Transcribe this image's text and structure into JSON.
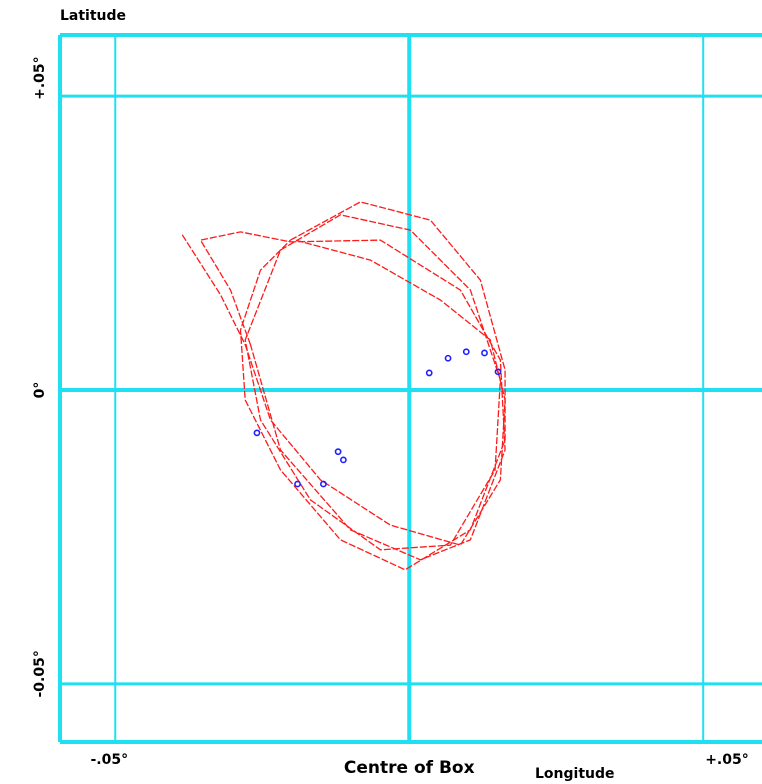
{
  "chart_data": {
    "type": "line",
    "x_label": "Longitude",
    "y_label": "Latitude",
    "xlim": [
      -0.0594,
      0.06
    ],
    "ylim": [
      -0.0599,
      0.0604
    ],
    "xticks": [
      {
        "value": -0.05,
        "label": "-.05°"
      },
      {
        "value": 0,
        "label": "Centre of Box"
      },
      {
        "value": 0.05,
        "label": "+.05°"
      }
    ],
    "yticks": [
      {
        "value": -0.05,
        "label": "-0.05°"
      },
      {
        "value": 0,
        "label": "0°"
      },
      {
        "value": 0.05,
        "label": "+.05°"
      }
    ],
    "grid": true,
    "grid_color": "#1fe0f2",
    "series": [
      {
        "color": "#ff1a1a",
        "x": [
          -0.0202,
          -0.0083,
          0.0036,
          0.0121,
          0.0163,
          0.0163,
          0.0104,
          -0.0007,
          -0.0117,
          -0.0219,
          -0.0279,
          -0.0287,
          -0.0253,
          -0.0202
        ],
        "values": [
          0.0255,
          0.032,
          0.0289,
          0.0187,
          0.0034,
          -0.0085,
          -0.0238,
          -0.0306,
          -0.0255,
          -0.0136,
          -0.0017,
          0.0102,
          0.0204,
          0.0255
        ]
      },
      {
        "color": "#ff1a1a",
        "x": [
          -0.0386,
          -0.0321,
          -0.0279,
          -0.0236,
          -0.0151,
          -0.0032,
          0.0087,
          0.0155,
          0.0163,
          0.0138,
          0.0053,
          -0.0066,
          -0.0194
        ],
        "values": [
          0.0264,
          0.0162,
          0.0077,
          -0.0051,
          -0.0153,
          -0.023,
          -0.0264,
          -0.0153,
          -0.0017,
          0.0085,
          0.0153,
          0.0221,
          0.0255
        ]
      },
      {
        "color": "#ff1a1a",
        "x": [
          -0.027,
          -0.0304,
          -0.0355,
          -0.0287,
          -0.0202,
          -0.0049,
          0.0087,
          0.0155,
          0.0163,
          0.0104,
          0.0019,
          -0.01,
          -0.0219,
          -0.027
        ],
        "values": [
          0.0077,
          0.017,
          0.0255,
          0.0269,
          0.0252,
          0.0255,
          0.017,
          0.0051,
          -0.0102,
          -0.0255,
          -0.0289,
          -0.0238,
          -0.0102,
          0.0077
        ]
      },
      {
        "color": "#ff1a1a",
        "x": [
          -0.0219,
          -0.0117,
          0.0002,
          0.0104,
          0.0155,
          0.0146,
          0.007,
          -0.0049,
          -0.0168,
          -0.0253,
          -0.0279,
          -0.0219
        ],
        "values": [
          0.0238,
          0.0298,
          0.0272,
          0.017,
          0.0017,
          -0.0136,
          -0.0264,
          -0.0272,
          -0.0187,
          -0.0051,
          0.0085,
          0.0238
        ]
      }
    ],
    "points": {
      "color": "#2020ff",
      "x": [
        -0.0259,
        -0.019,
        -0.0146,
        -0.0121,
        -0.0112,
        0.0034,
        0.0066,
        0.0097,
        0.0128,
        0.0151
      ],
      "values": [
        -0.0073,
        -0.016,
        -0.016,
        -0.0105,
        -0.0119,
        0.0029,
        0.0054,
        0.0065,
        0.0063,
        0.0031
      ]
    }
  }
}
